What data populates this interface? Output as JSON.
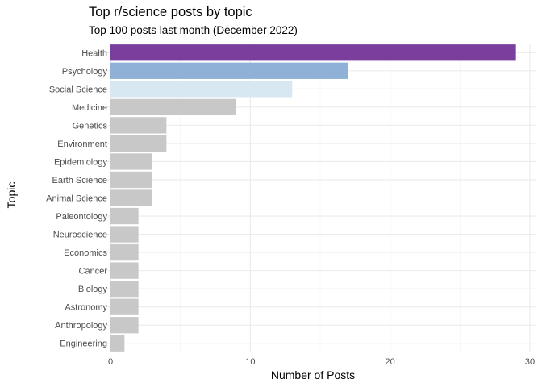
{
  "chart_data": {
    "type": "bar",
    "orientation": "horizontal",
    "title": "Top r/science posts by topic",
    "subtitle": "Top 100 posts last month (December 2022)",
    "xlabel": "Number of Posts",
    "ylabel": "Topic",
    "xlim": [
      0,
      30
    ],
    "xticks": [
      0,
      10,
      20,
      30
    ],
    "grid": true,
    "legend": "none",
    "categories": [
      "Health",
      "Psychology",
      "Social Science",
      "Medicine",
      "Genetics",
      "Environment",
      "Epidemiology",
      "Earth Science",
      "Animal Science",
      "Paleontology",
      "Neuroscience",
      "Economics",
      "Cancer",
      "Biology",
      "Astronomy",
      "Anthropology",
      "Engineering"
    ],
    "values": [
      29,
      17,
      13,
      9,
      4,
      4,
      3,
      3,
      3,
      2,
      2,
      2,
      2,
      2,
      2,
      2,
      1
    ],
    "colors": [
      "#7a3f9c",
      "#8fb1d7",
      "#d8e8f3",
      "#c8c8c8",
      "#c8c8c8",
      "#c8c8c8",
      "#c8c8c8",
      "#c8c8c8",
      "#c8c8c8",
      "#c8c8c8",
      "#c8c8c8",
      "#c8c8c8",
      "#c8c8c8",
      "#c8c8c8",
      "#c8c8c8",
      "#c8c8c8",
      "#c8c8c8"
    ]
  }
}
